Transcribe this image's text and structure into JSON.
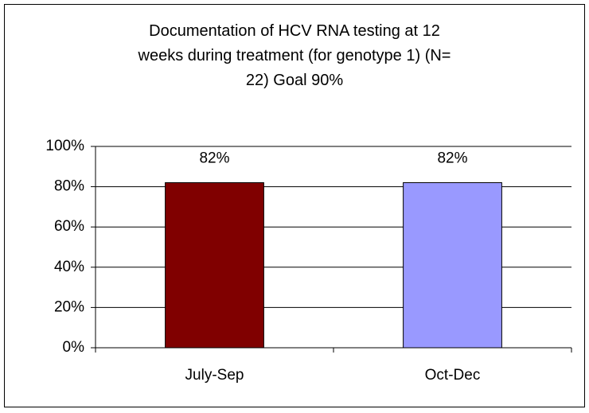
{
  "chart_data": {
    "type": "bar",
    "title": "Documentation of HCV RNA testing at 12 weeks during treatment (for genotype 1) (N= 22) Goal 90%",
    "categories": [
      "July-Sep",
      "Oct-Dec"
    ],
    "values": [
      82,
      82
    ],
    "value_labels": [
      "82%",
      "82%"
    ],
    "colors": [
      "#800000",
      "#9999ff"
    ],
    "ylim": [
      0,
      100
    ],
    "yticks": [
      {
        "value": 0,
        "label": "0%"
      },
      {
        "value": 20,
        "label": "20%"
      },
      {
        "value": 40,
        "label": "40%"
      },
      {
        "value": 60,
        "label": "60%"
      },
      {
        "value": 80,
        "label": "80%"
      },
      {
        "value": 100,
        "label": "100%"
      }
    ],
    "grid": true
  }
}
